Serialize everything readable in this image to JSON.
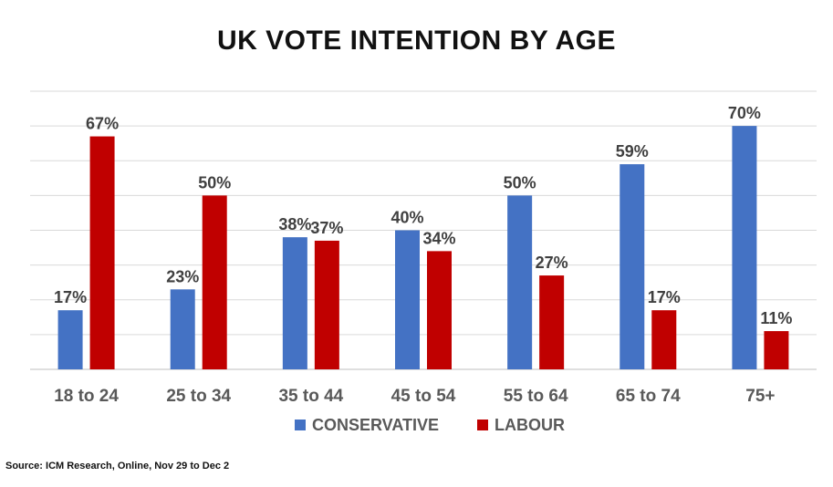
{
  "chart_data": {
    "type": "bar",
    "title": "UK VOTE INTENTION BY AGE",
    "categories": [
      "18 to 24",
      "25 to 34",
      "35 to 44",
      "45 to 54",
      "55 to 64",
      "65 to 74",
      "75+"
    ],
    "series": [
      {
        "name": "CONSERVATIVE",
        "color": "#4472C4",
        "values": [
          17,
          23,
          38,
          40,
          50,
          59,
          70
        ],
        "labels": [
          "17%",
          "23%",
          "38%",
          "40%",
          "50%",
          "59%",
          "70%"
        ]
      },
      {
        "name": "LABOUR",
        "color": "#C00000",
        "values": [
          67,
          50,
          37,
          34,
          27,
          17,
          11
        ],
        "labels": [
          "67%",
          "50%",
          "37%",
          "34%",
          "27%",
          "17%",
          "11%"
        ]
      }
    ],
    "ylim": [
      0,
      80
    ],
    "grid": true,
    "legend": "bottom",
    "xlabel": "",
    "ylabel": ""
  },
  "source": "Source: ICM Research, Online,  Nov 29  to Dec 2"
}
